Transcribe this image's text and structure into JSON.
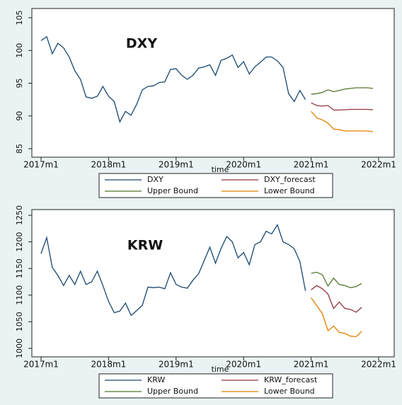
{
  "chart_data": [
    {
      "type": "line",
      "annotation": "DXY",
      "x_label": "time",
      "xlim": [
        "2017m1",
        "2022m1"
      ],
      "xticks": [
        "2017m1",
        "2018m1",
        "2019m1",
        "2020m1",
        "2021m1",
        "2022m1"
      ],
      "ylim": [
        85,
        105
      ],
      "yticks": [
        85,
        90,
        95,
        100,
        105
      ],
      "series": [
        {
          "name": "DXY",
          "color": "#1a476f",
          "x": [
            "2017m1",
            "2017m2",
            "2017m3",
            "2017m4",
            "2017m5",
            "2017m6",
            "2017m7",
            "2017m8",
            "2017m9",
            "2017m10",
            "2017m11",
            "2017m12",
            "2018m1",
            "2018m2",
            "2018m3",
            "2018m4",
            "2018m5",
            "2018m6",
            "2018m7",
            "2018m8",
            "2018m9",
            "2018m10",
            "2018m11",
            "2018m12",
            "2019m1",
            "2019m2",
            "2019m3",
            "2019m4",
            "2019m5",
            "2019m6",
            "2019m7",
            "2019m8",
            "2019m9",
            "2019m10",
            "2019m11",
            "2019m12",
            "2020m1",
            "2020m2",
            "2020m3",
            "2020m4",
            "2020m5",
            "2020m6",
            "2020m7",
            "2020m8",
            "2020m9",
            "2020m10",
            "2020m11",
            "2020m12"
          ],
          "values": [
            101.5,
            102.1,
            99.5,
            101.1,
            100.4,
            99.0,
            96.9,
            95.6,
            92.9,
            92.7,
            93.0,
            94.5,
            93.0,
            92.2,
            89.1,
            90.7,
            90.1,
            91.8,
            94.0,
            94.5,
            94.6,
            95.1,
            95.2,
            97.1,
            97.2,
            96.2,
            95.6,
            96.2,
            97.3,
            97.5,
            97.8,
            96.2,
            98.5,
            98.8,
            99.3,
            97.4,
            98.3,
            96.4,
            97.5,
            98.2,
            99.0,
            99.0,
            98.4,
            97.4,
            93.4,
            92.2,
            93.9,
            92.5
          ]
        },
        {
          "name": "DXY_forecast",
          "color": "#90353b",
          "x": [
            "2021m1",
            "2021m2",
            "2021m3",
            "2021m4",
            "2021m5",
            "2021m6",
            "2021m7",
            "2021m8",
            "2021m9",
            "2021m10",
            "2021m11",
            "2021m12"
          ],
          "values": [
            92.0,
            91.6,
            91.5,
            91.6,
            90.9,
            90.9,
            90.95,
            91.0,
            91.0,
            91.0,
            91.0,
            90.95
          ]
        },
        {
          "name": "Upper Bound",
          "color": "#55752f",
          "x": [
            "2021m1",
            "2021m2",
            "2021m3",
            "2021m4",
            "2021m5",
            "2021m6",
            "2021m7",
            "2021m8",
            "2021m9",
            "2021m10",
            "2021m11",
            "2021m12"
          ],
          "values": [
            93.3,
            93.4,
            93.6,
            94.0,
            93.7,
            93.9,
            94.1,
            94.2,
            94.3,
            94.3,
            94.3,
            94.2
          ]
        },
        {
          "name": "Lower Bound",
          "color": "#e37e00",
          "x": [
            "2021m1",
            "2021m2",
            "2021m3",
            "2021m4",
            "2021m5",
            "2021m6",
            "2021m7",
            "2021m8",
            "2021m9",
            "2021m10",
            "2021m11",
            "2021m12"
          ],
          "values": [
            90.7,
            89.7,
            89.4,
            88.9,
            88.0,
            87.9,
            87.7,
            87.7,
            87.7,
            87.7,
            87.7,
            87.6
          ]
        }
      ]
    },
    {
      "type": "line",
      "annotation": "KRW",
      "x_label": "time",
      "xlim": [
        "2017m1",
        "2022m1"
      ],
      "xticks": [
        "2017m1",
        "2018m1",
        "2019m1",
        "2020m1",
        "2021m1",
        "2022m1"
      ],
      "ylim": [
        1000,
        1250
      ],
      "yticks": [
        1000,
        1050,
        1100,
        1150,
        1200,
        1250
      ],
      "series": [
        {
          "name": "KRW",
          "color": "#1a476f",
          "x": [
            "2017m1",
            "2017m2",
            "2017m3",
            "2017m4",
            "2017m5",
            "2017m6",
            "2017m7",
            "2017m8",
            "2017m9",
            "2017m10",
            "2017m11",
            "2017m12",
            "2018m1",
            "2018m2",
            "2018m3",
            "2018m4",
            "2018m5",
            "2018m6",
            "2018m7",
            "2018m8",
            "2018m9",
            "2018m10",
            "2018m11",
            "2018m12",
            "2019m1",
            "2019m2",
            "2019m3",
            "2019m4",
            "2019m5",
            "2019m6",
            "2019m7",
            "2019m8",
            "2019m9",
            "2019m10",
            "2019m11",
            "2019m12",
            "2020m1",
            "2020m2",
            "2020m3",
            "2020m4",
            "2020m5",
            "2020m6",
            "2020m7",
            "2020m8",
            "2020m9",
            "2020m10",
            "2020m11",
            "2020m12"
          ],
          "values": [
            1178,
            1208,
            1152,
            1137,
            1118,
            1137,
            1120,
            1145,
            1120,
            1125,
            1145,
            1118,
            1088,
            1067,
            1070,
            1085,
            1062,
            1071,
            1081,
            1115,
            1114,
            1115,
            1112,
            1142,
            1120,
            1115,
            1113,
            1128,
            1140,
            1165,
            1190,
            1160,
            1188,
            1210,
            1200,
            1170,
            1180,
            1157,
            1195,
            1200,
            1220,
            1215,
            1232,
            1200,
            1195,
            1187,
            1163,
            1108
          ]
        },
        {
          "name": "KRW_forecast",
          "color": "#90353b",
          "x": [
            "2021m1",
            "2021m2",
            "2021m3",
            "2021m4",
            "2021m5",
            "2021m6",
            "2021m7",
            "2021m8",
            "2021m9",
            "2021m10"
          ],
          "values": [
            1110,
            1118,
            1112,
            1102,
            1075,
            1087,
            1075,
            1073,
            1068,
            1077
          ]
        },
        {
          "name": "Upper Bound",
          "color": "#55752f",
          "x": [
            "2021m1",
            "2021m2",
            "2021m3",
            "2021m4",
            "2021m5",
            "2021m6",
            "2021m7",
            "2021m8",
            "2021m9",
            "2021m10"
          ],
          "values": [
            1141,
            1143,
            1138,
            1117,
            1132,
            1120,
            1118,
            1114,
            1116,
            1122
          ]
        },
        {
          "name": "Lower Bound",
          "color": "#e37e00",
          "x": [
            "2021m1",
            "2021m2",
            "2021m3",
            "2021m4",
            "2021m5",
            "2021m6",
            "2021m7",
            "2021m8",
            "2021m9",
            "2021m10"
          ],
          "values": [
            1095,
            1080,
            1065,
            1033,
            1042,
            1030,
            1028,
            1023,
            1022,
            1032
          ]
        }
      ]
    }
  ]
}
